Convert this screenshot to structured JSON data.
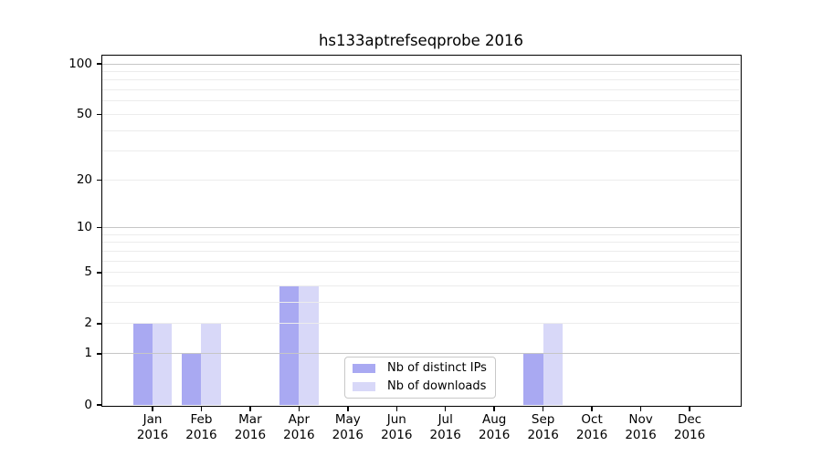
{
  "title": "hs133aptrefseqprobe 2016",
  "chart_data": {
    "type": "bar",
    "title": "hs133aptrefseqprobe 2016",
    "categories": [
      "Jan 2016",
      "Feb 2016",
      "Mar 2016",
      "Apr 2016",
      "May 2016",
      "Jun 2016",
      "Jul 2016",
      "Aug 2016",
      "Sep 2016",
      "Oct 2016",
      "Nov 2016",
      "Dec 2016"
    ],
    "series": [
      {
        "name": "Nb of distinct IPs",
        "color": "#a9a9f2",
        "values": [
          2,
          1,
          0,
          4,
          0,
          0,
          0,
          0,
          1,
          0,
          0,
          0
        ]
      },
      {
        "name": "Nb of downloads",
        "color": "#d8d8f8",
        "values": [
          2,
          2,
          0,
          4,
          0,
          0,
          0,
          0,
          2,
          0,
          0,
          0
        ]
      }
    ],
    "yscale": "log10(1+x)",
    "ylim": [
      0,
      112
    ],
    "y_tick_labels": [
      0,
      1,
      2,
      5,
      10,
      20,
      50,
      100
    ],
    "y_major_gridlines": [
      1,
      10,
      100
    ],
    "y_minor_gridlines": [
      2,
      3,
      4,
      5,
      6,
      7,
      8,
      9,
      20,
      30,
      40,
      50,
      60,
      70,
      80,
      90
    ],
    "grid": true,
    "grid_major_color": "#c6c6c6",
    "grid_minor_color": "#ececec",
    "legend_position": "inside-bottom-center",
    "xlabel": "",
    "ylabel": ""
  }
}
